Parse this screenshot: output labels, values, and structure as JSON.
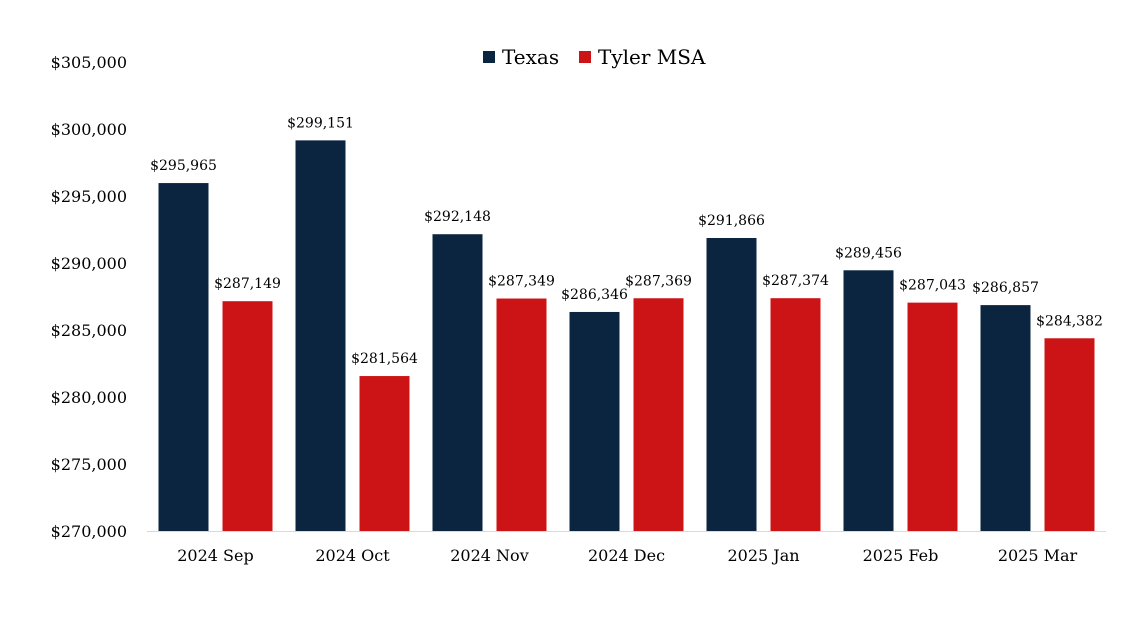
{
  "chart_data": {
    "type": "bar",
    "title": "",
    "xlabel": "",
    "ylabel": "",
    "ylim": [
      270000,
      305000
    ],
    "ytick_step": 5000,
    "yticks": [
      "$270,000",
      "$275,000",
      "$280,000",
      "$285,000",
      "$290,000",
      "$295,000",
      "$300,000",
      "$305,000"
    ],
    "categories": [
      "2024 Sep",
      "2024 Oct",
      "2024 Nov",
      "2024 Dec",
      "2025 Jan",
      "2025 Feb",
      "2025 Mar"
    ],
    "series": [
      {
        "name": "Texas",
        "color": "#0b2440",
        "values": [
          295965,
          299151,
          292148,
          286346,
          291866,
          289456,
          286857
        ],
        "labels": [
          "$295,965",
          "$299,151",
          "$292,148",
          "$286,346",
          "$291,866",
          "$289,456",
          "$286,857"
        ]
      },
      {
        "name": "Tyler MSA",
        "color": "#cc1416",
        "values": [
          287149,
          281564,
          287349,
          287369,
          287374,
          287043,
          284382
        ],
        "labels": [
          "$287,149",
          "$281,564",
          "$287,349",
          "$287,369",
          "$287,374",
          "$287,043",
          "$284,382"
        ]
      }
    ],
    "legend": {
      "position": "top-center",
      "entries": [
        "Texas",
        "Tyler MSA"
      ]
    },
    "grid": false
  }
}
